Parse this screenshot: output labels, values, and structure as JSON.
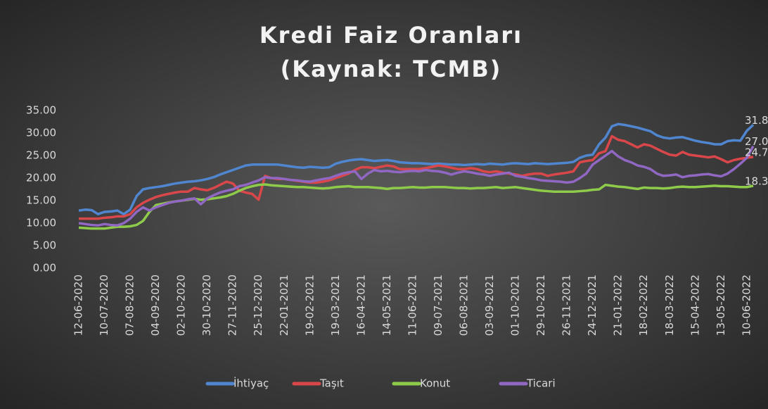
{
  "chart_data": {
    "type": "line",
    "title": [
      "Kredi Faiz Oranları",
      "(Kaynak: TCMB)"
    ],
    "categories": [
      "12-06-2020",
      null,
      null,
      null,
      "10-07-2020",
      null,
      null,
      null,
      "07-08-2020",
      null,
      null,
      null,
      "04-09-2020",
      null,
      null,
      null,
      "02-10-2020",
      null,
      null,
      null,
      "30-10-2020",
      null,
      null,
      null,
      "27-11-2020",
      null,
      null,
      null,
      "25-12-2020",
      null,
      null,
      null,
      "22-01-2021",
      null,
      null,
      null,
      "19-02-2021",
      null,
      null,
      null,
      "19-03-2021",
      null,
      null,
      null,
      "16-04-2021",
      null,
      null,
      null,
      "14-05-2021",
      null,
      null,
      null,
      "11-06-2021",
      null,
      null,
      null,
      "09-07-2021",
      null,
      null,
      null,
      "06-08-2021",
      null,
      null,
      null,
      "03-09-2021",
      null,
      null,
      null,
      "01-10-2021",
      null,
      null,
      null,
      "29-10-2021",
      null,
      null,
      null,
      "26-11-2021",
      null,
      null,
      null,
      "24-12-2021",
      null,
      null,
      null,
      "21-01-2022",
      null,
      null,
      null,
      "18-02-2022",
      null,
      null,
      null,
      "18-03-2022",
      null,
      null,
      null,
      "15-04-2022",
      null,
      null,
      null,
      "13-05-2022",
      null,
      null,
      null,
      "10-06-2022",
      null
    ],
    "series": [
      {
        "name": "İhtiyaç",
        "color": "#4f86cf",
        "values": [
          12.8,
          13,
          12.9,
          12,
          12.5,
          12.6,
          12.8,
          12,
          13,
          16,
          17.5,
          17.8,
          18,
          18.2,
          18.5,
          18.8,
          19,
          19.2,
          19.3,
          19.5,
          19.8,
          20.2,
          20.8,
          21.3,
          21.8,
          22.3,
          22.8,
          23,
          23,
          23,
          23,
          23,
          22.8,
          22.6,
          22.4,
          22.3,
          22.5,
          22.4,
          22.3,
          22.4,
          23.2,
          23.6,
          23.9,
          24.1,
          24.2,
          24,
          23.8,
          23.9,
          24,
          23.8,
          23.5,
          23.4,
          23.3,
          23.3,
          23.2,
          23.1,
          23.2,
          23.1,
          23,
          23,
          22.9,
          23,
          23.1,
          23,
          23.2,
          23.1,
          23,
          23.2,
          23.3,
          23.2,
          23.1,
          23.3,
          23.2,
          23.1,
          23.2,
          23.3,
          23.4,
          23.6,
          24.5,
          25,
          25.2,
          27.5,
          29,
          31.5,
          32,
          31.8,
          31.5,
          31.2,
          30.8,
          30.4,
          29.5,
          29,
          28.8,
          29,
          29.1,
          28.7,
          28.3,
          28,
          27.8,
          27.5,
          27.5,
          28.2,
          28.4,
          28.3,
          30.5,
          31.82
        ],
        "value_labels": {
          "105": "31.82"
        }
      },
      {
        "name": "Taşıt",
        "color": "#d9474a",
        "values": [
          11,
          11,
          11,
          11,
          11.2,
          11.3,
          11.5,
          11.5,
          12,
          13.5,
          14.5,
          15.2,
          15.8,
          16.2,
          16.5,
          16.8,
          17,
          17,
          17.8,
          17.5,
          17.3,
          17.8,
          18.5,
          19.2,
          18.8,
          17.2,
          16.8,
          16.5,
          15.2,
          20.5,
          20,
          19.8,
          19.8,
          19.6,
          19.4,
          19.2,
          19,
          19,
          19.2,
          19.5,
          20,
          20.5,
          21,
          21.8,
          22.4,
          22.4,
          22.2,
          22.5,
          22.8,
          22.6,
          22,
          22,
          22,
          22,
          22.2,
          22.5,
          22.8,
          22.6,
          22.3,
          22,
          22,
          22.2,
          22,
          21.5,
          21.3,
          21.5,
          21.2,
          21,
          20.8,
          20.5,
          20.8,
          21,
          21,
          20.5,
          20.8,
          21,
          21.2,
          21.5,
          23.5,
          23.8,
          24,
          25.5,
          26,
          29.3,
          28.5,
          28.2,
          27.5,
          26.8,
          27.5,
          27.2,
          26.5,
          25.8,
          25.2,
          25,
          25.8,
          25.2,
          25,
          24.8,
          24.6,
          24.8,
          24.2,
          23.5,
          24,
          24.3,
          24.5,
          24.71
        ],
        "value_labels": {
          "105": "24.71"
        }
      },
      {
        "name": "Konut",
        "color": "#8fcb4a",
        "values": [
          9,
          8.9,
          8.8,
          8.8,
          8.8,
          9,
          9.2,
          9.2,
          9.3,
          9.6,
          10.5,
          12.5,
          14,
          14.3,
          14.6,
          14.8,
          15,
          15.2,
          15.4,
          15.2,
          15.3,
          15.5,
          15.7,
          16,
          16.5,
          17.2,
          17.8,
          18.2,
          18.5,
          18.6,
          18.4,
          18.3,
          18.2,
          18.1,
          18,
          18,
          17.9,
          17.8,
          17.7,
          17.8,
          18,
          18.1,
          18.2,
          18,
          18,
          18,
          17.9,
          17.8,
          17.6,
          17.8,
          17.8,
          17.9,
          18,
          17.9,
          17.9,
          18,
          18,
          18,
          17.9,
          17.8,
          17.8,
          17.7,
          17.8,
          17.8,
          17.9,
          18,
          17.8,
          17.9,
          18,
          17.8,
          17.6,
          17.4,
          17.2,
          17.1,
          17,
          17,
          17,
          17,
          17.1,
          17.2,
          17.4,
          17.5,
          18.5,
          18.3,
          18.1,
          18,
          17.8,
          17.6,
          17.9,
          17.8,
          17.8,
          17.7,
          17.8,
          18,
          18.1,
          18,
          18,
          18.1,
          18.2,
          18.3,
          18.2,
          18.2,
          18.1,
          18,
          18,
          18.3
        ],
        "value_labels": {
          "105": "18.30"
        }
      },
      {
        "name": "Ticari",
        "color": "#9067c2",
        "values": [
          10,
          9.8,
          9.6,
          9.5,
          9.8,
          9.6,
          9.5,
          10,
          11,
          12.5,
          13.5,
          12.8,
          13.5,
          14,
          14.5,
          14.8,
          15,
          15.3,
          15.5,
          14.2,
          15.5,
          16.2,
          16.8,
          17.2,
          17.5,
          18.2,
          18.5,
          19,
          19.5,
          20.2,
          20,
          20,
          19.8,
          19.6,
          19.5,
          19.3,
          19.2,
          19.5,
          19.8,
          20,
          20.5,
          21,
          21.3,
          21.5,
          19.8,
          21,
          21.8,
          21.5,
          21.6,
          21.4,
          21.3,
          21.5,
          21.6,
          21.5,
          21.8,
          21.6,
          21.5,
          21.2,
          20.8,
          21.2,
          21.5,
          21.3,
          21,
          20.8,
          20.5,
          20.8,
          21,
          21.2,
          20.5,
          20.3,
          20,
          19.8,
          19.5,
          19.4,
          19.3,
          19.2,
          19,
          19.2,
          20,
          21,
          23,
          24,
          25,
          26,
          24.8,
          24,
          23.5,
          22.8,
          22.5,
          22,
          21,
          20.5,
          20.6,
          20.8,
          20.2,
          20.5,
          20.6,
          20.8,
          20.9,
          20.6,
          20.4,
          21,
          22,
          23.2,
          24.5,
          27.09
        ],
        "value_labels": {
          "105": "27.09"
        }
      }
    ],
    "ylim": [
      0,
      35
    ],
    "yticks": [
      {
        "value": 0,
        "label": "0.00"
      },
      {
        "value": 5,
        "label": "5.00"
      },
      {
        "value": 10,
        "label": "10.00"
      },
      {
        "value": 15,
        "label": "15.00"
      },
      {
        "value": 20,
        "label": "20.00"
      },
      {
        "value": 25,
        "label": "25.00"
      },
      {
        "value": 30,
        "label": "30.00"
      },
      {
        "value": 35,
        "label": "35.00"
      }
    ],
    "grid": false,
    "legend": "bottom"
  }
}
